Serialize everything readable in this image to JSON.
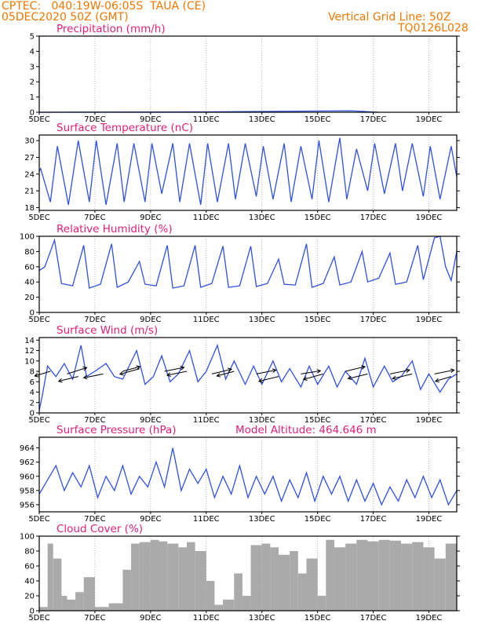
{
  "header": {
    "line1_left": "CPTEC:   040:19W-06:05S  TAUA (CE)",
    "line2_left": "05DEC2020 50Z (GMT)",
    "line1_right": "Vertical Grid Line: 50Z",
    "line2_right": "TQ0126L028",
    "color": "#f07800"
  },
  "x_ticks": [
    "5DEC",
    "7DEC",
    "9DEC",
    "11DEC",
    "13DEC",
    "15DEC",
    "17DEC",
    "19DEC"
  ],
  "colors": {
    "title": "#e0207a",
    "line": "#3050e0",
    "bar": "#aaaaaa",
    "vector": "#000000"
  },
  "chart_data": [
    {
      "type": "line",
      "title": "Precipitation (mm/h)",
      "ylim": [
        0,
        5
      ],
      "yticks": [
        0,
        1,
        2,
        3,
        4,
        5
      ],
      "x_days": [
        0,
        6.5,
        11.2,
        12.2
      ],
      "y": [
        0.0,
        0.03,
        0.1,
        0.0
      ]
    },
    {
      "type": "line",
      "title": "Surface Temperature (nC)",
      "ylim": [
        17.5,
        31
      ],
      "yticks": [
        18,
        21,
        24,
        27,
        30
      ],
      "x_days": [
        0,
        0.05,
        0.4,
        0.65,
        1.05,
        1.4,
        1.8,
        2.05,
        2.4,
        2.8,
        3.05,
        3.4,
        3.8,
        4.05,
        4.4,
        4.8,
        5.05,
        5.4,
        5.8,
        6.05,
        6.4,
        6.8,
        7.05,
        7.4,
        7.8,
        8.05,
        8.4,
        8.8,
        9.05,
        9.4,
        9.8,
        10.05,
        10.4,
        10.8,
        11.05,
        11.4,
        11.8,
        12.05,
        12.4,
        12.8,
        13.05,
        13.4,
        13.8,
        14.05,
        14.4,
        14.8,
        15.0
      ],
      "y": [
        24.5,
        25,
        19,
        29,
        18.5,
        30,
        19,
        30,
        18.5,
        29.5,
        19,
        29.5,
        19,
        29.5,
        20.5,
        29.5,
        19,
        29.5,
        18.5,
        29.5,
        19,
        29.5,
        19.5,
        29.5,
        20,
        29,
        19.5,
        29.5,
        19,
        29,
        19.5,
        30,
        19,
        30.5,
        19.5,
        28.5,
        21,
        29.5,
        20.5,
        29.5,
        21,
        29.5,
        20,
        29,
        19.5,
        29,
        23.5
      ]
    },
    {
      "type": "line",
      "title": "Relative Humidity (%)",
      "ylim": [
        0,
        100
      ],
      "yticks": [
        0,
        20,
        40,
        60,
        80,
        100
      ],
      "x_days": [
        0,
        0.2,
        0.55,
        0.8,
        1.2,
        1.6,
        1.8,
        2.2,
        2.6,
        2.8,
        3.2,
        3.6,
        3.8,
        4.2,
        4.6,
        4.8,
        5.2,
        5.6,
        5.8,
        6.2,
        6.6,
        6.8,
        7.2,
        7.6,
        7.8,
        8.2,
        8.6,
        8.8,
        9.2,
        9.6,
        9.8,
        10.2,
        10.6,
        10.8,
        11.2,
        11.6,
        11.8,
        12.2,
        12.6,
        12.8,
        13.2,
        13.6,
        13.8,
        14.2,
        14.4,
        14.6,
        14.8,
        15.0
      ],
      "y": [
        55,
        60,
        95,
        38,
        35,
        88,
        32,
        37,
        90,
        33,
        40,
        67,
        37,
        35,
        88,
        32,
        35,
        88,
        33,
        38,
        87,
        33,
        35,
        87,
        34,
        38,
        70,
        37,
        36,
        90,
        33,
        38,
        73,
        36,
        40,
        80,
        40,
        45,
        78,
        37,
        40,
        88,
        43,
        98,
        100,
        60,
        42,
        80
      ]
    },
    {
      "type": "line",
      "title": "Surface Wind (m/s)",
      "ylim": [
        0,
        14.5
      ],
      "yticks": [
        0,
        2,
        4,
        6,
        8,
        10,
        12,
        14
      ],
      "x_days": [
        0,
        0.1,
        0.3,
        0.6,
        0.9,
        1.2,
        1.5,
        1.7,
        2.0,
        2.4,
        2.7,
        3.0,
        3.5,
        3.8,
        4.1,
        4.4,
        4.7,
        5.0,
        5.4,
        5.7,
        6.0,
        6.4,
        6.7,
        7.0,
        7.4,
        7.7,
        8.0,
        8.4,
        8.7,
        9.0,
        9.4,
        9.7,
        10.0,
        10.4,
        10.7,
        11.0,
        11.4,
        11.7,
        12.0,
        12.4,
        12.7,
        13.0,
        13.4,
        13.7,
        14.0,
        14.4,
        14.7,
        15.0
      ],
      "y": [
        0.5,
        3,
        9,
        7,
        9.5,
        6.5,
        13,
        7,
        8,
        9.5,
        7,
        6.5,
        12,
        5.5,
        7,
        11,
        6,
        7.5,
        12,
        6,
        8,
        13,
        6.5,
        10,
        5.5,
        9,
        5.5,
        10,
        6,
        8.5,
        5,
        9,
        5.5,
        9,
        5,
        8,
        5.5,
        10.5,
        5,
        9,
        6,
        7,
        10,
        4.5,
        7.5,
        4,
        6.5,
        7.5
      ]
    },
    {
      "type": "line",
      "title": "Surface Pressure (hPa)",
      "annotation": "Model Altitude: 464.646  m",
      "ylim": [
        955,
        965.5
      ],
      "yticks": [
        956,
        958,
        960,
        962,
        964
      ],
      "x_days": [
        0,
        0.3,
        0.6,
        0.9,
        1.2,
        1.5,
        1.8,
        2.1,
        2.4,
        2.7,
        3.0,
        3.3,
        3.6,
        3.9,
        4.2,
        4.5,
        4.8,
        5.1,
        5.4,
        5.7,
        6.0,
        6.3,
        6.6,
        6.9,
        7.2,
        7.5,
        7.8,
        8.1,
        8.4,
        8.7,
        9.0,
        9.3,
        9.6,
        9.9,
        10.2,
        10.5,
        10.8,
        11.1,
        11.4,
        11.7,
        12.0,
        12.3,
        12.6,
        12.9,
        13.2,
        13.5,
        13.8,
        14.1,
        14.4,
        14.7,
        15.0
      ],
      "y": [
        957.5,
        959.5,
        961.5,
        958,
        960.5,
        958.5,
        961.5,
        957,
        960,
        958,
        961.5,
        957.5,
        960,
        958.5,
        962,
        958.5,
        964,
        958,
        961,
        959,
        961,
        957,
        960,
        957.5,
        961.5,
        957,
        960,
        957.5,
        960,
        956.5,
        959.5,
        957,
        960.5,
        956.5,
        960,
        957.5,
        960,
        956.5,
        959.5,
        956.5,
        959,
        956,
        958.5,
        956.5,
        959.5,
        957,
        960,
        957,
        959.5,
        956,
        958
      ]
    },
    {
      "type": "bar",
      "title": "Cloud Cover (%)",
      "ylim": [
        0,
        100
      ],
      "yticks": [
        0,
        20,
        40,
        60,
        80,
        100
      ],
      "x_days": [
        0,
        0.3,
        0.5,
        0.8,
        1.0,
        1.3,
        1.6,
        2.0,
        2.5,
        3.0,
        3.3,
        3.6,
        4.0,
        4.3,
        4.6,
        5.0,
        5.3,
        5.6,
        6.0,
        6.3,
        6.6,
        7.0,
        7.3,
        7.6,
        8.0,
        8.3,
        8.6,
        9.0,
        9.3,
        9.6,
        10.0,
        10.3,
        10.6,
        11.0,
        11.4,
        11.8,
        12.2,
        12.6,
        13.0,
        13.4,
        13.8,
        14.2,
        14.6,
        15.0
      ],
      "y": [
        5,
        90,
        70,
        20,
        15,
        25,
        45,
        5,
        10,
        55,
        90,
        92,
        95,
        93,
        90,
        85,
        92,
        80,
        40,
        8,
        15,
        50,
        20,
        88,
        90,
        85,
        75,
        80,
        50,
        70,
        20,
        95,
        85,
        90,
        95,
        93,
        95,
        94,
        90,
        92,
        85,
        70,
        90,
        92
      ]
    }
  ]
}
